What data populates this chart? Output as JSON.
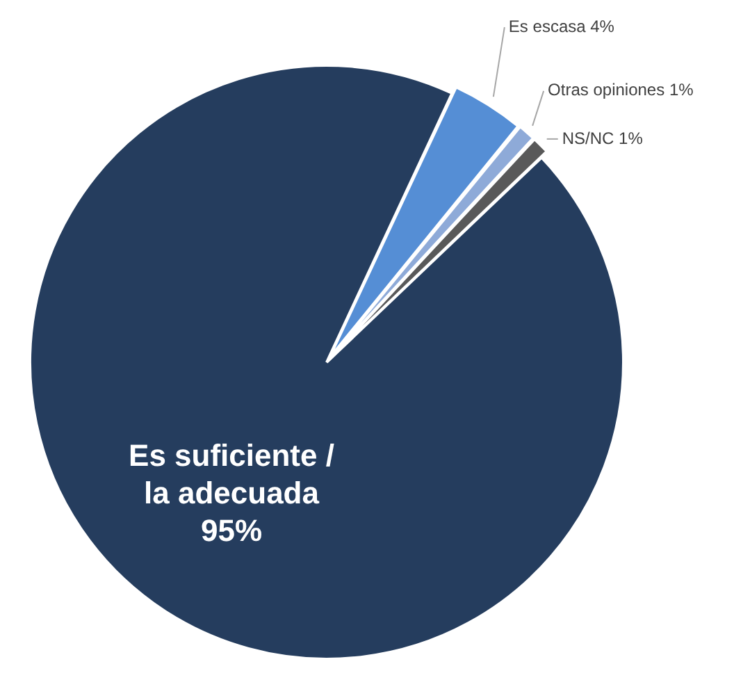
{
  "chart_data": {
    "type": "pie",
    "categories": [
      "Es escasa",
      "Otras opiniones",
      "NS/NC",
      "Es suficiente / la adecuada"
    ],
    "values": [
      4,
      1,
      1,
      95
    ],
    "value_labels": [
      "4%",
      "1%",
      "1%",
      "95%"
    ],
    "colors": [
      "#558ed5",
      "#8eaad8",
      "#595959",
      "#253d5e"
    ]
  }
}
